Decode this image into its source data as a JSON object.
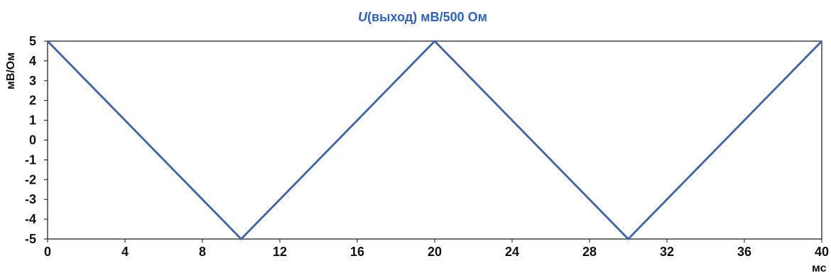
{
  "chart_data": {
    "type": "line",
    "title_parts": {
      "variable": "U",
      "rest": "(выход) мВ/500 Ом"
    },
    "xlabel": "мс",
    "ylabel": "мВ/Ом",
    "xlim": [
      0,
      40
    ],
    "ylim": [
      -5,
      5
    ],
    "x_ticks": [
      0,
      4,
      8,
      12,
      16,
      20,
      24,
      28,
      32,
      36,
      40
    ],
    "y_ticks": [
      5,
      4,
      3,
      2,
      1,
      0,
      -1,
      -2,
      -3,
      -4,
      -5
    ],
    "grid": false,
    "series": [
      {
        "x": [
          0,
          10,
          20,
          30,
          40
        ],
        "y": [
          5,
          -5,
          5,
          -5,
          5
        ]
      }
    ],
    "colors": {
      "title": "#2f63b3",
      "line": "#3d63a6",
      "axes": "#111111",
      "text": "#111111"
    }
  }
}
